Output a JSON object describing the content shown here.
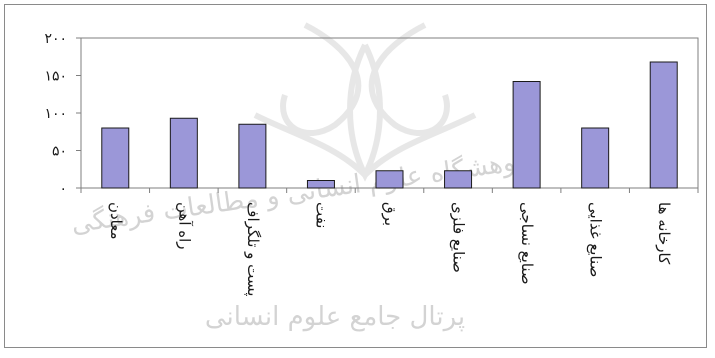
{
  "chart_data": {
    "type": "bar",
    "title": "",
    "xlabel": "",
    "ylabel": "",
    "categories": [
      "معادن",
      "راه آهن",
      "پست و تلگراف",
      "نفت",
      "برق",
      "صنایع فلزی",
      "صنایع نساجی",
      "صنایع غذایی",
      "کارخانه ها"
    ],
    "values": [
      80,
      93,
      85,
      10,
      23,
      23,
      142,
      80,
      168
    ],
    "ylim": [
      0,
      200
    ],
    "yticks": [
      0,
      50,
      100,
      150,
      200
    ],
    "ytick_labels": [
      "۰",
      "۵۰",
      "۱۰۰",
      "۱۵۰",
      "۲۰۰"
    ],
    "grid": false,
    "legend": "none",
    "colors": {
      "bar_fill": "#9b97d8",
      "bar_stroke": "#1a1a1a",
      "axis": "#7f7f7f",
      "frame": "#8a8a8a",
      "text": "#1a1a1a"
    }
  },
  "watermark": {
    "line1": "پژوهشگاه علوم انسانی و مطالعات فرهنگی",
    "line2": "پرتال جامع علوم انسانی",
    "color": "#a0a0a0"
  }
}
